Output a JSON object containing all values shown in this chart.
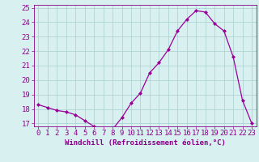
{
  "x": [
    0,
    1,
    2,
    3,
    4,
    5,
    6,
    7,
    8,
    9,
    10,
    11,
    12,
    13,
    14,
    15,
    16,
    17,
    18,
    19,
    20,
    21,
    22,
    23
  ],
  "y": [
    18.3,
    18.1,
    17.9,
    17.8,
    17.6,
    17.2,
    16.8,
    16.6,
    16.6,
    17.4,
    18.4,
    19.1,
    20.5,
    21.2,
    22.1,
    23.4,
    24.2,
    24.8,
    24.7,
    23.9,
    23.4,
    21.6,
    18.6,
    17.0
  ],
  "line_color": "#990099",
  "marker": "D",
  "marker_size": 2.0,
  "linewidth": 0.9,
  "bg_color": "#d8f0f0",
  "grid_color": "#aacece",
  "xlabel": "Windchill (Refroidissement éolien,°C)",
  "xlabel_fontsize": 6.5,
  "xtick_labels": [
    "0",
    "1",
    "2",
    "3",
    "4",
    "5",
    "6",
    "7",
    "8",
    "9",
    "10",
    "11",
    "12",
    "13",
    "14",
    "15",
    "16",
    "17",
    "18",
    "19",
    "20",
    "21",
    "22",
    "23"
  ],
  "ytick_min": 17,
  "ytick_max": 25,
  "ytick_step": 1,
  "tick_fontsize": 6.5,
  "tick_color": "#880088",
  "axis_color": "#880088",
  "figsize": [
    3.2,
    2.0
  ],
  "dpi": 100
}
